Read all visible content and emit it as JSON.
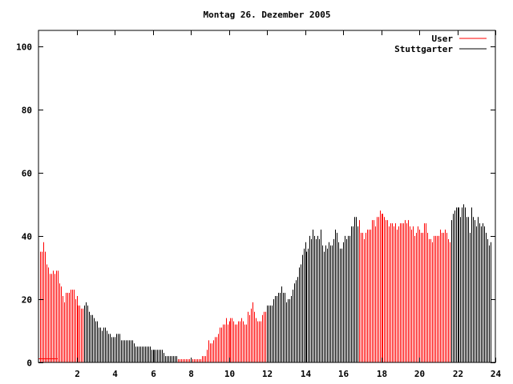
{
  "chart_data": {
    "type": "bar",
    "title": "Montag 26. Dezember 2005",
    "xlabel": "",
    "ylabel": "",
    "xlim": [
      0,
      24
    ],
    "ylim": [
      0,
      105
    ],
    "x_ticks": [
      "2",
      "4",
      "6",
      "8",
      "10",
      "12",
      "14",
      "16",
      "18",
      "20",
      "22",
      "24"
    ],
    "x_tick_values": [
      2,
      4,
      6,
      8,
      10,
      12,
      14,
      16,
      18,
      20,
      22,
      24
    ],
    "y_ticks": [
      "0",
      "20",
      "40",
      "60",
      "80",
      "100"
    ],
    "y_tick_values": [
      0,
      20,
      40,
      60,
      80,
      100
    ],
    "grid": false,
    "legend_position": "top-right",
    "legend": [
      {
        "name": "User",
        "color": "#ff0000"
      },
      {
        "name": "Stuttgarter",
        "color": "#000000"
      }
    ],
    "x_interval_minutes": 5,
    "values": [
      35,
      35,
      38,
      35,
      31,
      30,
      28,
      28,
      29,
      28,
      29,
      29,
      25,
      24,
      21,
      19,
      22,
      22,
      22,
      23,
      23,
      23,
      20,
      21,
      18,
      18,
      17,
      17,
      18,
      19,
      18,
      16,
      15,
      15,
      14,
      13,
      13,
      11,
      11,
      10,
      11,
      11,
      10,
      9,
      9,
      8,
      8,
      8,
      9,
      9,
      9,
      7,
      7,
      7,
      7,
      7,
      7,
      7,
      7,
      6,
      5,
      5,
      5,
      5,
      5,
      5,
      5,
      5,
      5,
      5,
      4,
      4,
      4,
      4,
      4,
      4,
      4,
      4,
      3,
      2,
      2,
      2,
      2,
      2,
      2,
      2,
      2,
      1,
      1,
      1,
      1,
      1,
      1,
      1,
      1,
      1,
      1,
      1,
      1,
      1,
      1,
      1,
      2,
      2,
      2,
      4,
      7,
      6,
      6,
      7,
      8,
      8,
      9,
      11,
      11,
      12,
      12,
      14,
      12,
      13,
      14,
      14,
      13,
      12,
      12,
      13,
      13,
      14,
      13,
      12,
      12,
      16,
      15,
      17,
      19,
      16,
      14,
      13,
      13,
      13,
      15,
      16,
      16,
      18,
      18,
      18,
      18,
      20,
      21,
      21,
      22,
      22,
      24,
      22,
      22,
      19,
      20,
      20,
      21,
      23,
      25,
      26,
      27,
      30,
      31,
      34,
      36,
      38,
      35,
      36,
      40,
      39,
      42,
      40,
      39,
      40,
      39,
      42,
      37,
      35,
      37,
      36,
      38,
      37,
      37,
      39,
      42,
      41,
      38,
      36,
      36,
      38,
      40,
      39,
      40,
      40,
      43,
      43,
      46,
      46,
      43,
      45,
      41,
      41,
      39,
      41,
      42,
      42,
      42,
      45,
      45,
      43,
      46,
      46,
      48,
      47,
      47,
      46,
      45,
      45,
      43,
      44,
      44,
      43,
      44,
      42,
      43,
      44,
      44,
      44,
      45,
      44,
      45,
      43,
      42,
      43,
      40,
      41,
      43,
      42,
      41,
      41,
      44,
      44,
      41,
      39,
      39,
      38,
      40,
      40,
      40,
      40,
      42,
      41,
      41,
      42,
      41,
      39,
      38,
      45,
      47,
      48,
      49,
      49,
      49,
      46,
      49,
      50,
      49,
      46,
      46,
      41,
      49,
      46,
      45,
      43,
      46,
      44,
      43,
      44,
      43,
      41,
      39,
      37,
      38
    ],
    "segments": [
      {
        "series": "User",
        "from": 0,
        "to": 2.38
      },
      {
        "series": "Stuttgarter",
        "from": 2.38,
        "to": 7.3
      },
      {
        "series": "User",
        "from": 7.3,
        "to": 11.97
      },
      {
        "series": "Stuttgarter",
        "from": 11.97,
        "to": 16.8
      },
      {
        "series": "User",
        "from": 16.8,
        "to": 21.63
      },
      {
        "series": "Stuttgarter",
        "from": 21.63,
        "to": 24
      }
    ],
    "user_line": {
      "from": 0,
      "to": 1.0,
      "value": 1
    }
  }
}
